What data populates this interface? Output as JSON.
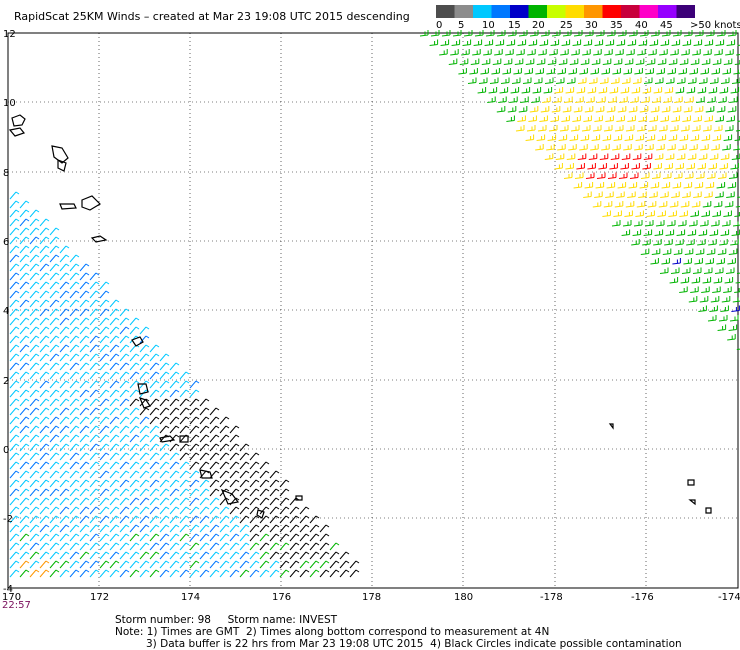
{
  "title": "RapidScat 25KM Winds – created at Mar 23 19:08 UTC 2015 descending",
  "legend": {
    "colors": [
      "#4d4d4d",
      "#8c8c8c",
      "#00c8ff",
      "#0078ff",
      "#0000c8",
      "#00b400",
      "#c8ff00",
      "#ffdc00",
      "#ff9600",
      "#ff0000",
      "#c8003c",
      "#ff00c8",
      "#9600ff",
      "#3c0078"
    ],
    "labels": [
      "0",
      "5",
      "10",
      "15",
      "20",
      "25",
      "30",
      "35",
      "40",
      "45",
      ">50 knots"
    ]
  },
  "axes": {
    "y_ticks": [
      "12",
      "10",
      "8",
      "6",
      "4",
      "2",
      "0",
      "-2",
      "-4"
    ],
    "x_ticks": [
      "170",
      "172",
      "174",
      "176",
      "178",
      "180",
      "-178",
      "-176",
      "-174"
    ]
  },
  "time_stamp": "22:57",
  "storm": {
    "line": "Storm number: 98     Storm name: INVEST"
  },
  "notes": {
    "line1": "Note: 1) Times are GMT  2) Times along bottom correspond to measurement at 4N",
    "line2": "3) Data buffer is 22 hrs from Mar 23 19:08 UTC 2015  4) Black Circles indicate possible contamination"
  },
  "swaths": {
    "east": {
      "color_main": "#00b400",
      "color_hi": "#ffdc00",
      "color_max": "#ff0000"
    },
    "west": {
      "color_main": "#00c8ff",
      "color_alt": "#0078ff",
      "color_low": "#000000"
    }
  }
}
